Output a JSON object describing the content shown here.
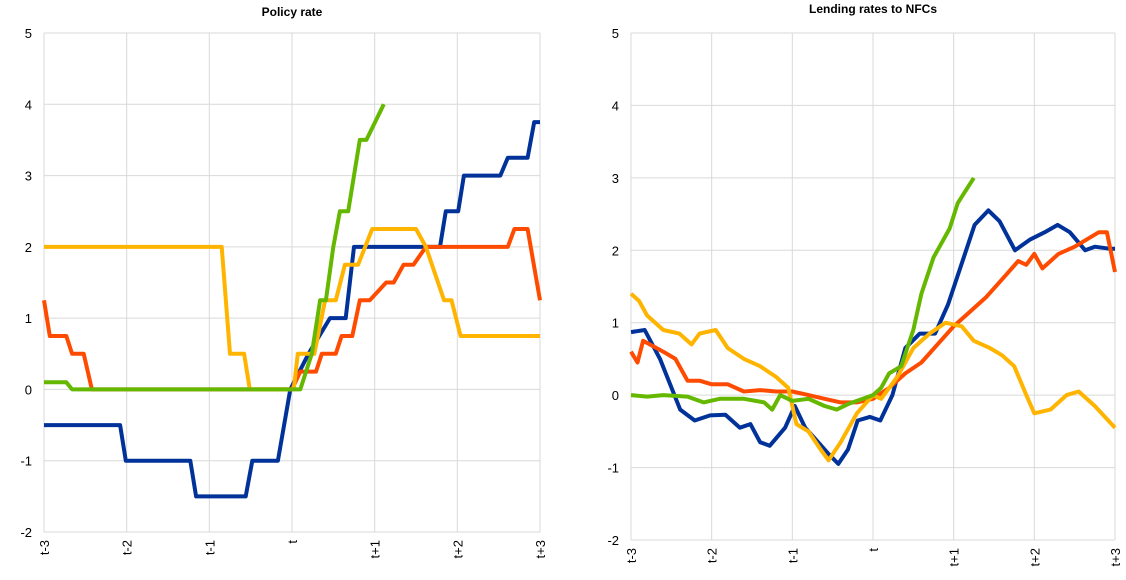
{
  "chart_data": [
    {
      "type": "line",
      "title": "Policy rate",
      "xlim": [
        -3,
        3
      ],
      "xticks": [
        {
          "value": -3,
          "label": "t-3"
        },
        {
          "value": -2,
          "label": "t-2"
        },
        {
          "value": -1,
          "label": "t-1"
        },
        {
          "value": 0,
          "label": "t"
        },
        {
          "value": 1,
          "label": "t+1"
        },
        {
          "value": 2,
          "label": "t+2"
        },
        {
          "value": 3,
          "label": "t+3"
        }
      ],
      "ylim": [
        -2,
        5
      ],
      "yticks": [
        -2,
        -1,
        0,
        1,
        2,
        3,
        4,
        5
      ],
      "grid": true,
      "series": [
        {
          "color": "#003299",
          "x": [
            -3,
            -2.08,
            -2.01,
            -1.23,
            -1.16,
            -0.56,
            -0.48,
            -0.17,
            -0.02,
            0.2,
            0.46,
            0.65,
            0.75,
            1.79,
            1.86,
            2.01,
            2.08,
            2.52,
            2.61,
            2.85,
            2.93,
            3
          ],
          "values": [
            -0.5,
            -0.5,
            -1,
            -1,
            -1.5,
            -1.5,
            -1,
            -1,
            0,
            0.5,
            1,
            1,
            2,
            2,
            2.5,
            2.5,
            3,
            3,
            3.25,
            3.25,
            3.75,
            3.75
          ]
        },
        {
          "color": "#ff4b00",
          "x": [
            -3,
            -2.93,
            -2.73,
            -2.66,
            -2.52,
            -2.42,
            0,
            0.1,
            0.29,
            0.36,
            0.53,
            0.6,
            0.73,
            0.82,
            0.94,
            1.14,
            1.23,
            1.35,
            1.47,
            1.62,
            2.61,
            2.69,
            2.85,
            3
          ],
          "values": [
            1.25,
            0.75,
            0.75,
            0.5,
            0.5,
            0,
            0,
            0.25,
            0.25,
            0.5,
            0.5,
            0.75,
            0.75,
            1.25,
            1.25,
            1.5,
            1.5,
            1.75,
            1.75,
            2,
            2,
            2.25,
            2.25,
            1.25
          ]
        },
        {
          "color": "#ffb400",
          "x": [
            -3,
            -0.85,
            -0.75,
            -0.58,
            -0.51,
            0.02,
            0.07,
            0.27,
            0.4,
            0.53,
            0.64,
            0.8,
            0.97,
            1.5,
            1.62,
            1.84,
            1.93,
            2.04,
            3
          ],
          "values": [
            2,
            2,
            0.5,
            0.5,
            0,
            0,
            0.5,
            0.5,
            1.25,
            1.25,
            1.75,
            1.75,
            2.25,
            2.25,
            2,
            1.25,
            1.25,
            0.75,
            0.75
          ]
        },
        {
          "color": "#65b800",
          "x": [
            -3,
            -2.73,
            -2.66,
            0.1,
            0.24,
            0.34,
            0.41,
            0.5,
            0.58,
            0.68,
            0.82,
            0.9,
            1.11
          ],
          "values": [
            0.1,
            0.1,
            0,
            0,
            0.5,
            1.25,
            1.25,
            2,
            2.5,
            2.5,
            3.5,
            3.5,
            4
          ]
        }
      ]
    },
    {
      "type": "line",
      "title": "Lending rates to NFCs",
      "xlim": [
        -3,
        3
      ],
      "xticks": [
        {
          "value": -3,
          "label": "t-3"
        },
        {
          "value": -2,
          "label": "t-2"
        },
        {
          "value": -1,
          "label": "t-1"
        },
        {
          "value": 0,
          "label": "t"
        },
        {
          "value": 1,
          "label": "t+1"
        },
        {
          "value": 2,
          "label": "t+2"
        },
        {
          "value": 3,
          "label": "t+3"
        }
      ],
      "ylim": [
        -2,
        5
      ],
      "yticks": [
        -2,
        -1,
        0,
        1,
        2,
        3,
        4,
        5
      ],
      "grid": true,
      "series": [
        {
          "color": "#003299",
          "x": [
            -3,
            -2.83,
            -2.64,
            -2.39,
            -2.21,
            -2.02,
            -1.83,
            -1.65,
            -1.52,
            -1.4,
            -1.28,
            -1.09,
            -0.97,
            -0.84,
            -0.72,
            -0.56,
            -0.43,
            -0.31,
            -0.19,
            -0.04,
            0.09,
            0.24,
            0.4,
            0.58,
            0.77,
            0.93,
            1.08,
            1.26,
            1.43,
            1.57,
            1.76,
            1.95,
            2.13,
            2.29,
            2.44,
            2.63,
            2.75,
            2.94,
            3
          ],
          "values": [
            0.87,
            0.9,
            0.5,
            -0.2,
            -0.35,
            -0.28,
            -0.27,
            -0.45,
            -0.4,
            -0.65,
            -0.7,
            -0.45,
            -0.15,
            -0.45,
            -0.6,
            -0.8,
            -0.95,
            -0.75,
            -0.35,
            -0.3,
            -0.35,
            0,
            0.65,
            0.85,
            0.85,
            1.25,
            1.75,
            2.35,
            2.55,
            2.4,
            2,
            2.15,
            2.25,
            2.35,
            2.25,
            2,
            2.05,
            2.02,
            2.02
          ]
        },
        {
          "color": "#ff4b00",
          "x": [
            -3,
            -2.92,
            -2.85,
            -2.6,
            -2.45,
            -2.3,
            -2.15,
            -2,
            -1.8,
            -1.6,
            -1.4,
            -1.2,
            -1,
            -0.8,
            -0.6,
            -0.4,
            -0.2,
            0,
            0.2,
            0.4,
            0.6,
            0.8,
            1,
            1.2,
            1.4,
            1.6,
            1.8,
            1.9,
            2,
            2.1,
            2.3,
            2.5,
            2.65,
            2.8,
            2.9,
            3
          ],
          "values": [
            0.6,
            0.45,
            0.75,
            0.6,
            0.5,
            0.2,
            0.2,
            0.15,
            0.15,
            0.05,
            0.07,
            0.05,
            0.05,
            0,
            -0.05,
            -0.1,
            -0.1,
            -0.05,
            0.1,
            0.3,
            0.45,
            0.7,
            0.95,
            1.15,
            1.35,
            1.6,
            1.85,
            1.8,
            1.95,
            1.75,
            1.95,
            2.05,
            2.15,
            2.25,
            2.25,
            1.7
          ]
        },
        {
          "color": "#ffb400",
          "x": [
            -3,
            -2.9,
            -2.8,
            -2.6,
            -2.4,
            -2.25,
            -2.15,
            -1.95,
            -1.8,
            -1.6,
            -1.4,
            -1.2,
            -1.05,
            -0.95,
            -0.8,
            -0.65,
            -0.55,
            -0.4,
            -0.2,
            0,
            0.1,
            0.3,
            0.5,
            0.7,
            0.9,
            1.1,
            1.25,
            1.45,
            1.6,
            1.75,
            1.9,
            2,
            2.2,
            2.4,
            2.55,
            2.75,
            3
          ],
          "values": [
            1.4,
            1.3,
            1.1,
            0.9,
            0.85,
            0.7,
            0.85,
            0.9,
            0.65,
            0.5,
            0.4,
            0.25,
            0.1,
            -0.4,
            -0.5,
            -0.75,
            -0.9,
            -0.65,
            -0.25,
            0,
            -0.05,
            0.25,
            0.65,
            0.85,
            1,
            0.95,
            0.75,
            0.65,
            0.55,
            0.4,
            0,
            -0.25,
            -0.2,
            0,
            0.05,
            -0.15,
            -0.45
          ]
        },
        {
          "color": "#65b800",
          "x": [
            -3,
            -2.8,
            -2.6,
            -2.3,
            -2.1,
            -1.9,
            -1.6,
            -1.35,
            -1.25,
            -1.15,
            -1,
            -0.8,
            -0.6,
            -0.45,
            -0.3,
            0,
            0.1,
            0.2,
            0.35,
            0.5,
            0.6,
            0.75,
            0.95,
            1.05,
            1.25
          ],
          "values": [
            0,
            -0.02,
            0,
            -0.02,
            -0.1,
            -0.05,
            -0.05,
            -0.1,
            -0.2,
            0,
            -0.08,
            -0.05,
            -0.15,
            -0.2,
            -0.12,
            0,
            0.1,
            0.3,
            0.4,
            0.9,
            1.4,
            1.9,
            2.3,
            2.65,
            3
          ]
        }
      ]
    }
  ]
}
